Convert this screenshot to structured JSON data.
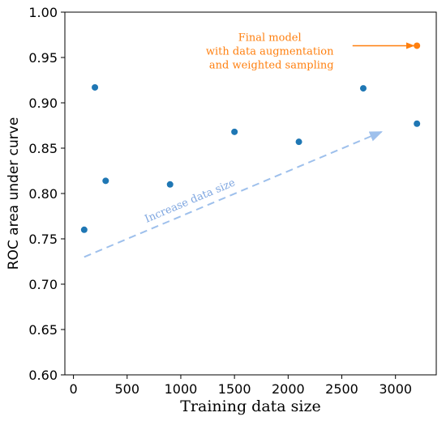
{
  "chart_data": {
    "type": "scatter",
    "title": "",
    "xlabel": "Training data size",
    "ylabel": "ROC area under curve",
    "xlim": [
      -80,
      3380
    ],
    "ylim": [
      0.6,
      1.0
    ],
    "x_ticks": [
      0,
      500,
      1000,
      1500,
      2000,
      2500,
      3000
    ],
    "y_ticks": [
      0.6,
      0.65,
      0.7,
      0.75,
      0.8,
      0.85,
      0.9,
      0.95,
      1.0
    ],
    "x_tick_labels": [
      "0",
      "500",
      "1000",
      "1500",
      "2000",
      "2500",
      "3000"
    ],
    "y_tick_labels": [
      "0.60",
      "0.65",
      "0.70",
      "0.75",
      "0.80",
      "0.85",
      "0.90",
      "0.95",
      "1.00"
    ],
    "grid": false,
    "series": [
      {
        "color": "#1f77b4",
        "points": [
          {
            "x": 100,
            "y": 0.76
          },
          {
            "x": 200,
            "y": 0.917
          },
          {
            "x": 300,
            "y": 0.814
          },
          {
            "x": 900,
            "y": 0.81
          },
          {
            "x": 1500,
            "y": 0.868
          },
          {
            "x": 2100,
            "y": 0.857
          },
          {
            "x": 2700,
            "y": 0.916
          },
          {
            "x": 3200,
            "y": 0.877
          }
        ]
      },
      {
        "color": "#ff7f0e",
        "points": [
          {
            "x": 3200,
            "y": 0.963
          }
        ]
      }
    ],
    "annotations": [
      {
        "lines": [
          "Final model",
          "with data augmentation",
          "and weighted sampling"
        ],
        "color": "#ff7f0e",
        "arrow_from": {
          "x": 2600,
          "y": 0.963
        },
        "arrow_to": {
          "x": 3170,
          "y": 0.963
        }
      },
      {
        "text": "Increase data size",
        "color": "#7ea6e0",
        "arrow_from": {
          "x": 100,
          "y": 0.73
        },
        "arrow_to": {
          "x": 2870,
          "y": 0.868
        }
      }
    ]
  }
}
